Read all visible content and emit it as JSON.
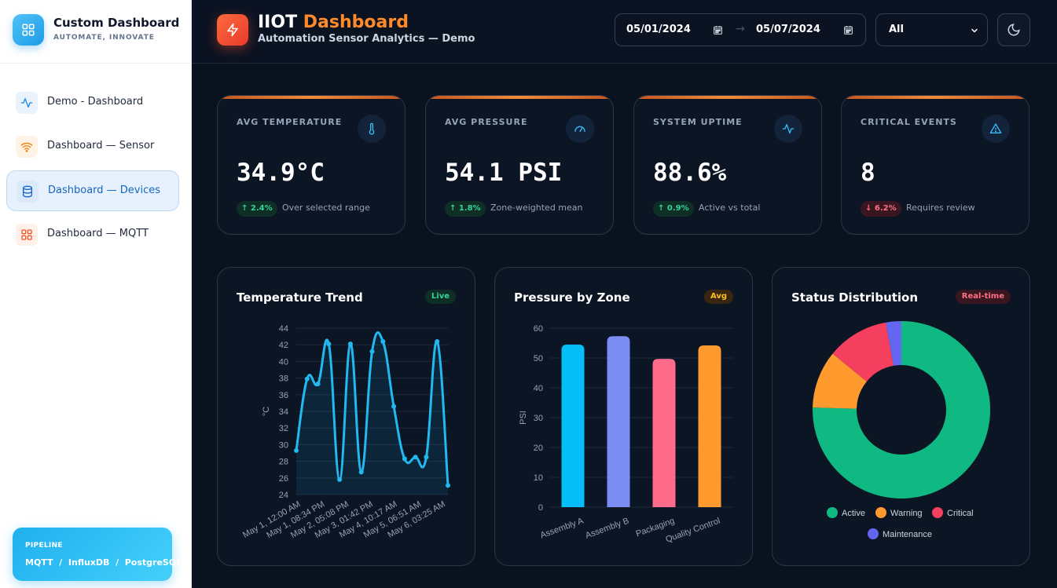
{
  "brand": {
    "title": "Custom Dashboard",
    "subtitle": "AUTOMATE, INNOVATE",
    "icon": "grid-icon"
  },
  "nav": [
    {
      "label": "Demo - Dashboard",
      "icon": "activity-icon",
      "color": "#1e88e5",
      "active": false
    },
    {
      "label": "Dashboard — Sensor",
      "icon": "wifi-icon",
      "color": "#f57c00",
      "active": false
    },
    {
      "label": "Dashboard — Devices",
      "icon": "database-icon",
      "color": "#1565c0",
      "active": true
    },
    {
      "label": "Dashboard — MQTT",
      "icon": "grid-icon",
      "color": "#f4511e",
      "active": false
    }
  ],
  "pipeline": {
    "title": "PIPELINE",
    "value": "MQTT  /  InfluxDB  /  PostgreSQL"
  },
  "header": {
    "title_main": "IIOT",
    "title_accent": "Dashboard",
    "subtitle": "Automation Sensor Analytics — Demo",
    "date_from": "05/01/2024",
    "date_to": "05/07/2024",
    "arrow": "→",
    "filter": "All",
    "logo_icon": "bolt-icon",
    "theme_icon": "moon-icon"
  },
  "kpis": [
    {
      "label": "AVG TEMPERATURE",
      "value": "34.9°C",
      "delta": "↑ 2.4%",
      "trend": "up",
      "note": "Over selected range",
      "icon": "thermometer-icon"
    },
    {
      "label": "AVG PRESSURE",
      "value": "54.1 PSI",
      "delta": "↑ 1.8%",
      "trend": "up",
      "note": "Zone-weighted mean",
      "icon": "gauge-icon"
    },
    {
      "label": "SYSTEM UPTIME",
      "value": "88.6%",
      "delta": "↑ 0.9%",
      "trend": "up",
      "note": "Active vs total",
      "icon": "activity-icon"
    },
    {
      "label": "CRITICAL EVENTS",
      "value": "8",
      "delta": "↓ 6.2%",
      "trend": "down",
      "note": "Requires review",
      "icon": "alert-triangle-icon"
    }
  ],
  "cards": {
    "trend": {
      "title": "Temperature Trend",
      "tag": "Live"
    },
    "pressure": {
      "title": "Pressure by Zone",
      "tag": "Avg"
    },
    "status": {
      "title": "Status Distribution",
      "tag": "Real-time"
    }
  },
  "chart_data": [
    {
      "type": "line",
      "ylabel": "°C",
      "ylim": [
        24,
        44
      ],
      "yticks": [
        24,
        26,
        28,
        30,
        32,
        34,
        36,
        38,
        40,
        42,
        44
      ],
      "xtick_labels": [
        "May 1, 12:00 AM",
        "May 1, 08:34 PM",
        "May 2, 05:08 PM",
        "May 3, 01:42 PM",
        "May 4, 10:17 AM",
        "May 5, 06:51 AM",
        "May 6, 03:25 AM"
      ],
      "color": "#22b8f0",
      "x": [
        0,
        1,
        2,
        3,
        4,
        5,
        6,
        7,
        8,
        9,
        10,
        11,
        12,
        13,
        14
      ],
      "values": [
        29.3,
        37.9,
        37.3,
        42.1,
        25.8,
        42.1,
        26.7,
        41.2,
        42.4,
        34.6,
        28.3,
        28.5,
        28.5,
        42.4,
        25.1
      ],
      "grid": true
    },
    {
      "type": "bar",
      "categories": [
        "Assembly A",
        "Assembly B",
        "Packaging",
        "Quality Control"
      ],
      "values": [
        54.5,
        57.3,
        49.7,
        54.2
      ],
      "colors": [
        "#05bdf7",
        "#7b8cf2",
        "#ff6b8a",
        "#ff9a2e"
      ],
      "ylabel": "PSI",
      "ylim": [
        0,
        60
      ],
      "yticks": [
        0,
        10,
        20,
        30,
        40,
        50,
        60
      ],
      "grid": true
    },
    {
      "type": "pie",
      "donut": true,
      "categories": [
        "Active",
        "Warning",
        "Critical",
        "Maintenance"
      ],
      "values": [
        75.4,
        10.5,
        11.3,
        2.8
      ],
      "colors": [
        "#10b981",
        "#ff9a2e",
        "#f43f5e",
        "#6366f1"
      ],
      "legend": "bottom"
    }
  ]
}
